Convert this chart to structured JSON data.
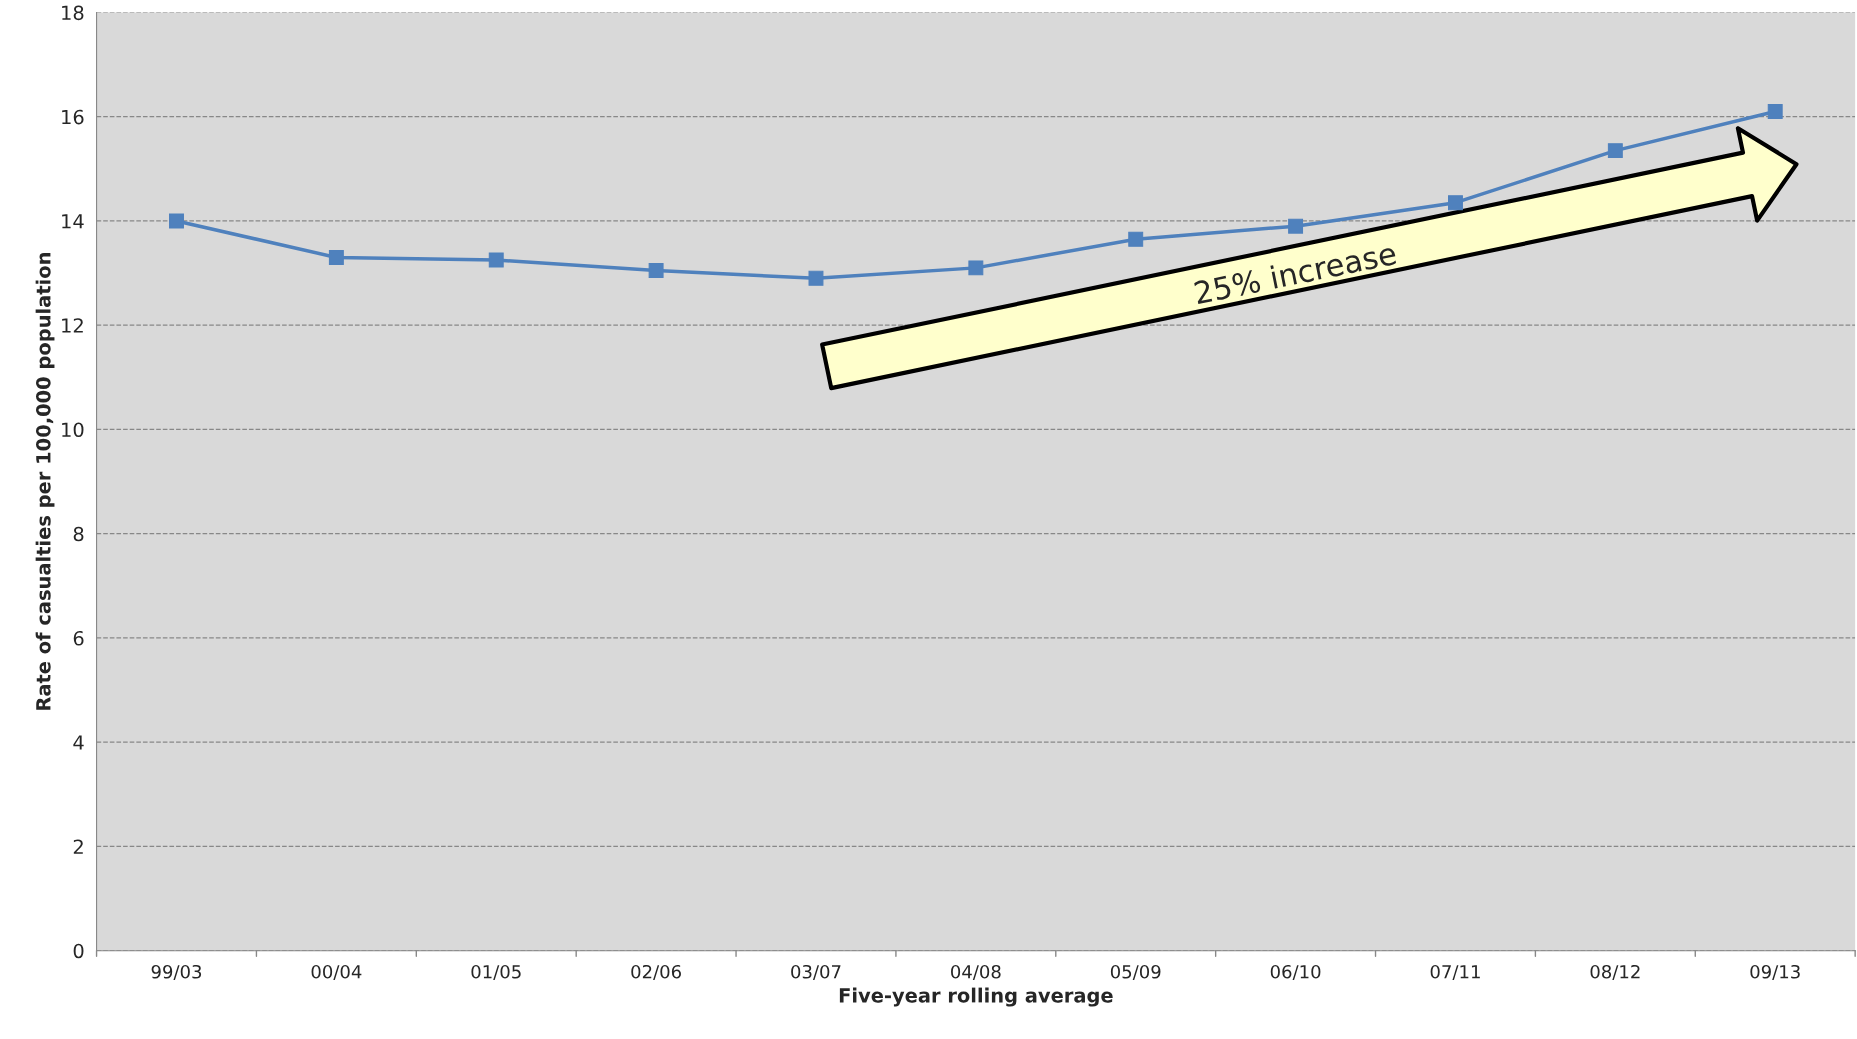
{
  "chart_data": {
    "type": "line",
    "xlabel": "Five-year rolling average",
    "ylabel": "Rate of casualties per 100,000 population",
    "categories": [
      "99/03",
      "00/04",
      "01/05",
      "02/06",
      "03/07",
      "04/08",
      "05/09",
      "06/10",
      "07/11",
      "08/12",
      "09/13"
    ],
    "series": [
      {
        "color": "#4f81bd",
        "values": [
          14.0,
          13.3,
          13.25,
          13.05,
          12.9,
          13.1,
          13.65,
          13.9,
          14.35,
          15.35,
          16.1
        ]
      }
    ],
    "ylim": [
      0,
      18
    ],
    "yticks": [
      0,
      2,
      4,
      6,
      8,
      10,
      12,
      14,
      16,
      18
    ],
    "grid": "y",
    "marker": "square",
    "line_style": "solid",
    "annotations": [
      "25% increase"
    ]
  }
}
